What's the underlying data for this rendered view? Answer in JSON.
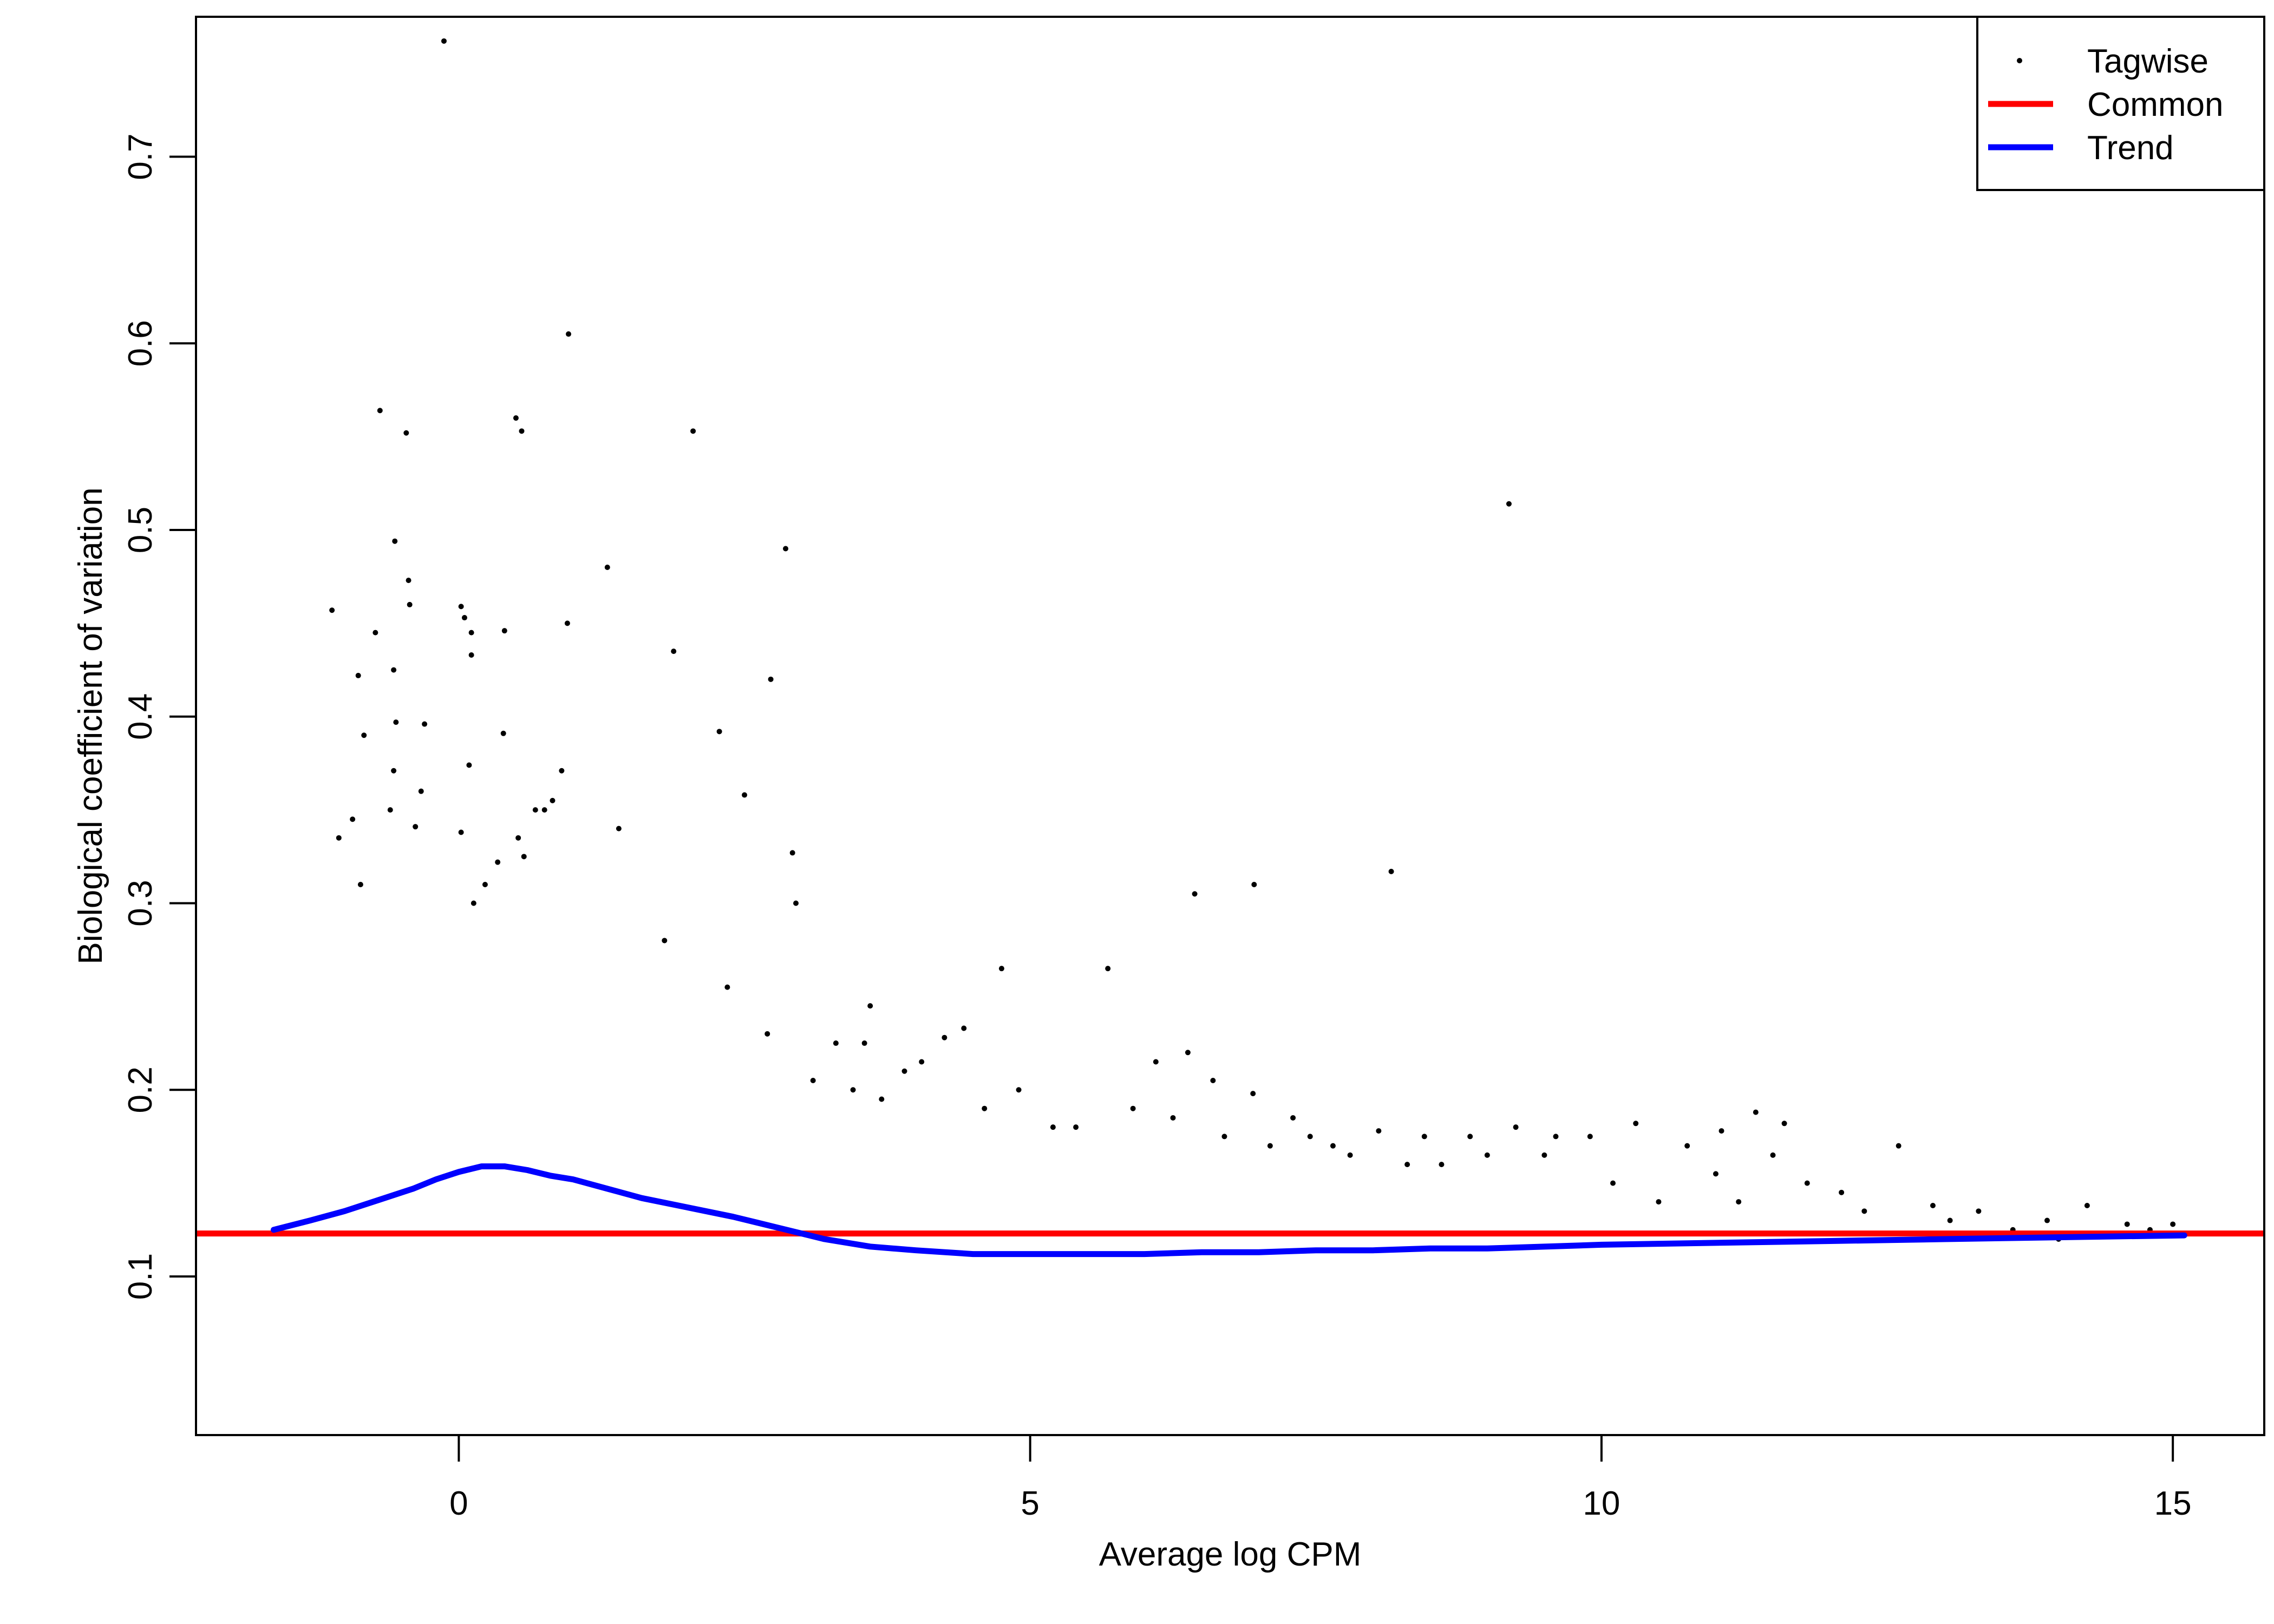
{
  "chart_data": {
    "type": "scatter",
    "title": "",
    "xlabel": "Average log CPM",
    "ylabel": "Biological coefficient of variation",
    "xlim": [
      -2.3,
      15.8
    ],
    "ylim": [
      0.015,
      0.775
    ],
    "x_ticks": [
      0,
      5,
      10,
      15
    ],
    "x_tick_labels": [
      "0",
      "5",
      "10",
      "15"
    ],
    "y_ticks": [
      0.1,
      0.2,
      0.3,
      0.4,
      0.5,
      0.6,
      0.7
    ],
    "y_tick_labels": [
      "0.1",
      "0.2",
      "0.3",
      "0.4",
      "0.5",
      "0.6",
      "0.7"
    ],
    "grid": false,
    "legend_position": "top-right",
    "legend": [
      {
        "label": "Tagwise",
        "kind": "point",
        "color": "#000000"
      },
      {
        "label": "Common",
        "kind": "line",
        "color": "#ff0000"
      },
      {
        "label": "Trend",
        "kind": "line",
        "color": "#0000ff"
      }
    ],
    "series": [
      {
        "name": "Tagwise",
        "kind": "scatter",
        "color": "#000000",
        "x": [
          -0.13,
          0.96,
          0.5,
          0.55,
          2.05,
          -0.69,
          -0.46,
          2.86,
          -0.44,
          0.02,
          1.3,
          -0.56,
          0.05,
          0.11,
          0.95,
          -1.11,
          0.4,
          -0.57,
          -0.73,
          1.88,
          -0.55,
          0.39,
          -0.43,
          0.11,
          -0.83,
          2.28,
          2.73,
          -0.57,
          0.09,
          -0.88,
          -0.3,
          0.9,
          0.67,
          2.5,
          -0.33,
          -0.6,
          -1.05,
          -0.38,
          0.75,
          0.52,
          -0.93,
          0.82,
          0.34,
          0.02,
          0.57,
          0.23,
          1.4,
          2.92,
          -0.86,
          0.13,
          9.19,
          6.44,
          6.96,
          8.16,
          5.68,
          4.75,
          4.42,
          4.25,
          3.9,
          3.55,
          6.1,
          6.38,
          6.6,
          6.95,
          7.3,
          7.65,
          8.05,
          8.45,
          8.85,
          9.25,
          9.6,
          9.9,
          10.3,
          10.75,
          11.05,
          11.35,
          11.6,
          11.5,
          12.6,
          13.3,
          13.9,
          14.25,
          14.6,
          15.0,
          12.1,
          12.9,
          9.5,
          10.1,
          11.0,
          11.8,
          13.6,
          14.8,
          8.6,
          7.8,
          7.1,
          6.7,
          5.9,
          5.4,
          4.9,
          4.6,
          3.3,
          2.7,
          2.35,
          1.8,
          3.6,
          4.05,
          3.1,
          2.95,
          3.45,
          3.7,
          5.2,
          6.25,
          7.45,
          8.3,
          9.0,
          10.5,
          11.2,
          12.3,
          13.05,
          14.0
        ],
        "y": [
          0.762,
          0.605,
          0.56,
          0.553,
          0.553,
          0.564,
          0.552,
          0.49,
          0.473,
          0.459,
          0.48,
          0.494,
          0.453,
          0.445,
          0.45,
          0.457,
          0.446,
          0.425,
          0.445,
          0.435,
          0.397,
          0.391,
          0.46,
          0.433,
          0.39,
          0.392,
          0.42,
          0.371,
          0.374,
          0.422,
          0.396,
          0.371,
          0.35,
          0.358,
          0.36,
          0.35,
          0.335,
          0.341,
          0.35,
          0.335,
          0.345,
          0.355,
          0.322,
          0.338,
          0.325,
          0.31,
          0.34,
          0.327,
          0.31,
          0.3,
          0.514,
          0.305,
          0.31,
          0.317,
          0.265,
          0.265,
          0.233,
          0.228,
          0.21,
          0.225,
          0.215,
          0.22,
          0.205,
          0.198,
          0.185,
          0.17,
          0.178,
          0.175,
          0.175,
          0.18,
          0.175,
          0.175,
          0.182,
          0.17,
          0.178,
          0.188,
          0.182,
          0.165,
          0.17,
          0.135,
          0.13,
          0.138,
          0.128,
          0.128,
          0.145,
          0.138,
          0.165,
          0.15,
          0.155,
          0.15,
          0.125,
          0.125,
          0.16,
          0.165,
          0.17,
          0.175,
          0.19,
          0.18,
          0.2,
          0.19,
          0.225,
          0.23,
          0.255,
          0.28,
          0.245,
          0.215,
          0.205,
          0.3,
          0.2,
          0.195,
          0.18,
          0.185,
          0.175,
          0.16,
          0.165,
          0.14,
          0.14,
          0.135,
          0.13,
          0.12
        ]
      },
      {
        "name": "Common",
        "kind": "hline",
        "color": "#ff0000",
        "y": 0.123
      },
      {
        "name": "Trend",
        "kind": "line",
        "color": "#0000ff",
        "x": [
          -1.62,
          -1.3,
          -1.0,
          -0.7,
          -0.4,
          -0.2,
          0.0,
          0.2,
          0.4,
          0.6,
          0.8,
          1.0,
          1.3,
          1.6,
          2.0,
          2.4,
          2.8,
          3.2,
          3.6,
          4.0,
          4.5,
          5.0,
          5.5,
          6.0,
          6.5,
          7.0,
          7.5,
          8.0,
          8.5,
          9.0,
          10.0,
          11.0,
          12.0,
          13.0,
          14.0,
          15.1
        ],
        "y": [
          0.125,
          0.13,
          0.135,
          0.141,
          0.147,
          0.152,
          0.156,
          0.159,
          0.159,
          0.157,
          0.154,
          0.152,
          0.147,
          0.142,
          0.137,
          0.132,
          0.126,
          0.12,
          0.116,
          0.114,
          0.112,
          0.112,
          0.112,
          0.112,
          0.113,
          0.113,
          0.114,
          0.114,
          0.115,
          0.115,
          0.117,
          0.118,
          0.119,
          0.12,
          0.121,
          0.122
        ]
      }
    ]
  }
}
